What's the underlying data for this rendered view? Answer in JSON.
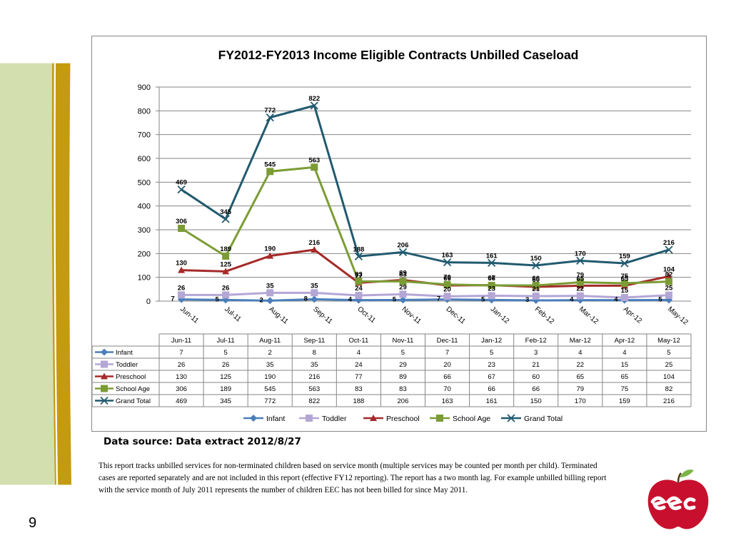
{
  "page_number": "9",
  "data_source": "Data source: Data extract 2012/8/27",
  "note": "This report tracks unbilled services for non-terminated children based on service month (multiple services may be counted per month per child). Terminated cases are reported separately and are not included in this report (effective FY12 reporting). The report has a two month lag. For example unbilled billing report with the service month of July 2011 represents the number of children EEC has not been billed for since May 2011.",
  "logo": {
    "text": "eec",
    "color": "#c8102e",
    "leaf_color": "#7ab648"
  },
  "colors": {
    "stripe_light": "#d3dfae",
    "stripe_gold": "#c49a10"
  },
  "chart_data": {
    "type": "line",
    "title": "FY2012-FY2013 Income Eligible Contracts Unbilled Caseload",
    "categories": [
      "Jun-11",
      "Jul-11",
      "Aug-11",
      "Sep-11",
      "Oct-11",
      "Nov-11",
      "Dec-11",
      "Jan-12",
      "Feb-12",
      "Mar-12",
      "Apr-12",
      "May-12"
    ],
    "ylim": [
      0,
      900
    ],
    "yticks": [
      0,
      100,
      200,
      300,
      400,
      500,
      600,
      700,
      800,
      900
    ],
    "grid": true,
    "legend_position": "bottom",
    "data_table": true,
    "series": [
      {
        "name": "Infant",
        "color": "#4a7ebb",
        "marker": "diamond",
        "values": [
          7,
          5,
          2,
          8,
          4,
          5,
          7,
          5,
          3,
          4,
          4,
          5
        ]
      },
      {
        "name": "Toddler",
        "color": "#b4a7d6",
        "marker": "square",
        "values": [
          26,
          26,
          35,
          35,
          24,
          29,
          20,
          23,
          21,
          22,
          15,
          25
        ]
      },
      {
        "name": "Preschool",
        "color": "#a52a2a",
        "marker": "triangle",
        "values": [
          130,
          125,
          190,
          216,
          77,
          89,
          66,
          67,
          60,
          65,
          65,
          104
        ]
      },
      {
        "name": "School Age",
        "color": "#7b9c35",
        "marker": "square",
        "values": [
          306,
          189,
          545,
          563,
          83,
          83,
          70,
          66,
          66,
          79,
          75,
          82
        ]
      },
      {
        "name": "Grand Total",
        "color": "#215a6e",
        "marker": "x",
        "values": [
          469,
          345,
          772,
          822,
          188,
          206,
          163,
          161,
          150,
          170,
          159,
          216
        ]
      }
    ]
  }
}
